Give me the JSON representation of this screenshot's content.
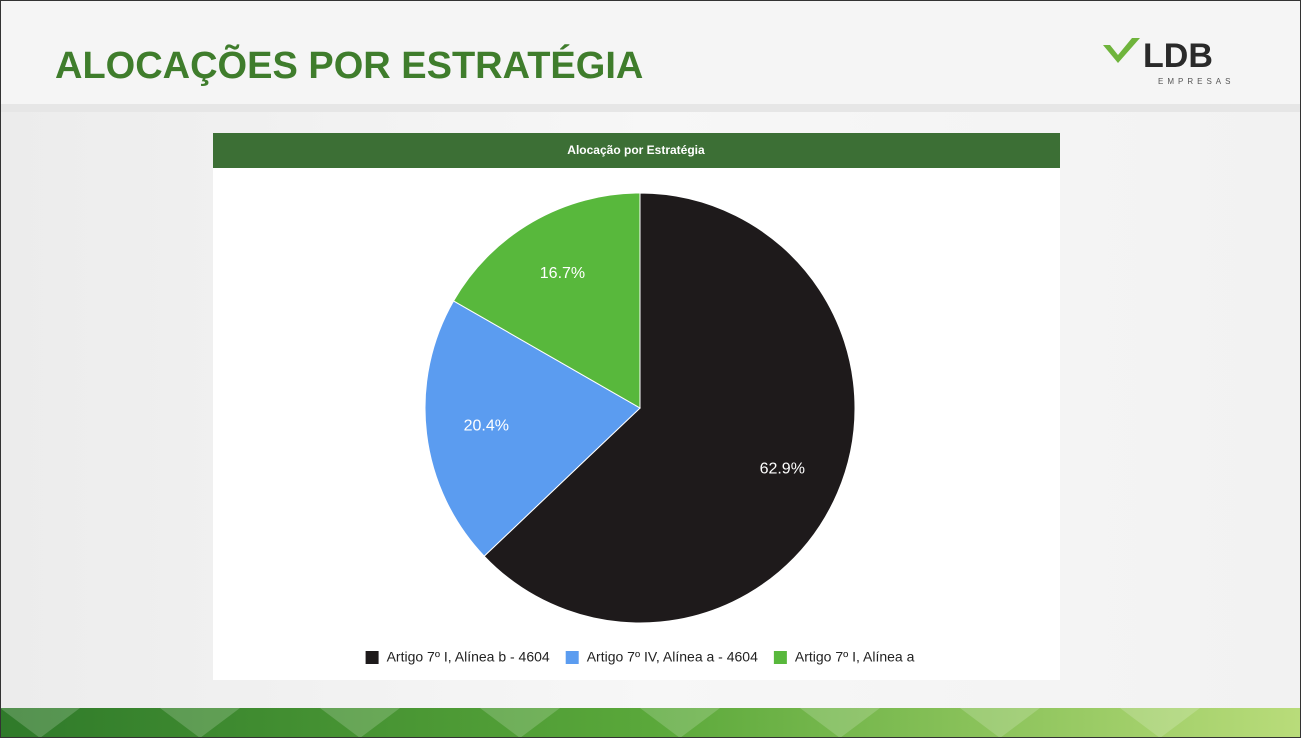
{
  "header": {
    "title": "ALOCAÇÕES POR ESTRATÉGIA",
    "logo": "LDB",
    "logo_subtitle": "EMPRESAS"
  },
  "chart_data": {
    "type": "pie",
    "title": "Alocação por Estratégia",
    "categories": [
      "Artigo 7º I, Alínea b - 4604",
      "Artigo 7º IV, Alínea a - 4604",
      "Artigo 7º I, Alínea a"
    ],
    "values": [
      62.9,
      20.4,
      16.7
    ],
    "value_labels": [
      "62.9%",
      "20.4%",
      "16.7%"
    ],
    "colors": [
      "#1e1a1b",
      "#5b9cf0",
      "#58b83c"
    ],
    "legend": "bottom"
  }
}
